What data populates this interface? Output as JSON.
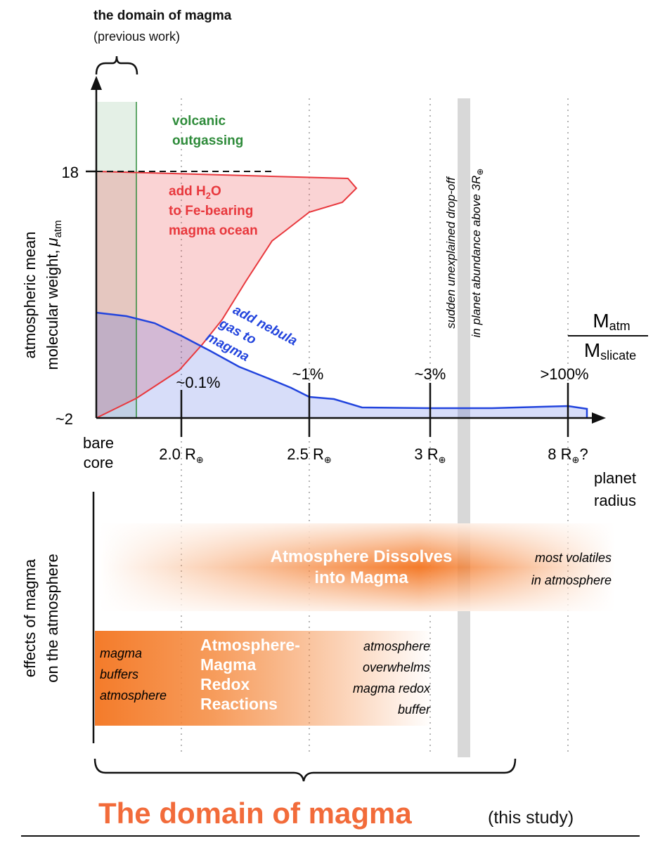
{
  "title_previous": {
    "main": "the domain of magma",
    "sub": "(previous work)"
  },
  "y_axis": {
    "label_line1": "atmospheric mean",
    "label_line2": "molecular weight,",
    "label_mu": "μ",
    "label_mu_sub": "atm",
    "tick_high": "18",
    "tick_low": "~2"
  },
  "x_axis": {
    "origin_line1": "bare",
    "origin_line2": "core",
    "ticks": [
      {
        "radius": "2.0",
        "unit": "R",
        "sym": "⊕",
        "suffix": "",
        "fraction": "~0.1%"
      },
      {
        "radius": "2.5",
        "unit": "R",
        "sym": "⊕",
        "suffix": "",
        "fraction": "~1%"
      },
      {
        "radius": "3",
        "unit": "R",
        "sym": "⊕",
        "suffix": "",
        "fraction": "~3%"
      },
      {
        "radius": "8",
        "unit": "R",
        "sym": "⊕",
        "suffix": "?",
        "fraction": ">100%"
      }
    ],
    "label_line1": "planet",
    "label_line2": "radius"
  },
  "mass_ratio": {
    "numerator": "M",
    "numerator_sub": "atm",
    "denominator": "M",
    "denominator_sub": "slicate"
  },
  "regions": {
    "volcanic": {
      "line1": "volcanic",
      "line2": "outgassing"
    },
    "water": {
      "line1_pre": "add H",
      "line1_sub": "2",
      "line1_post": "O",
      "line2": "to Fe-bearing",
      "line3": "magma ocean"
    },
    "nebula": {
      "line1": "add nebula",
      "line2": "gas to",
      "line3": "magma"
    }
  },
  "dropoff": {
    "line1": "sudden unexplained drop-off",
    "line2": "in planet abundance above 3R",
    "sym": "⊕"
  },
  "effects": {
    "axis_line1": "effects of magma",
    "axis_line2": "on the atmosphere",
    "dissolve": {
      "line1": "Atmosphere Dissolves",
      "line2": "into Magma"
    },
    "volatiles": {
      "line1": "most volatiles",
      "line2": "in atmosphere"
    },
    "buffers": {
      "line1": "magma",
      "line2": "buffers",
      "line3": "atmosphere"
    },
    "redox": {
      "line1": "Atmosphere-",
      "line2": "Magma",
      "line3": "Redox",
      "line4": "Reactions"
    },
    "overwhelms": {
      "line1": "atmosphere",
      "line2": "overwhelms",
      "line3": "magma redox",
      "line4": "buffer"
    }
  },
  "footer": {
    "main": "The domain of magma",
    "sub": "(this study)"
  },
  "colors": {
    "volcanic": "#2e8b3a",
    "water": "#e8383d",
    "nebula": "#2244dd",
    "orange": "#f47b2a",
    "footer_orange": "#f26b3a",
    "gray_band": "#d8d8d8"
  }
}
